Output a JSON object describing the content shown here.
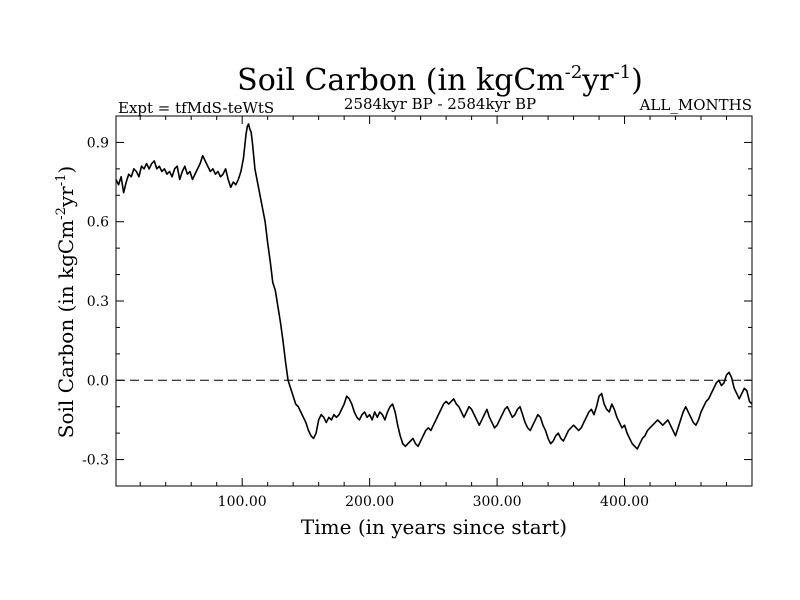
{
  "header": {
    "expt_label": "Expt = tfMdS-teWtS",
    "period_label": "2584kyr BP - 2584kyr BP",
    "months_label": "ALL_MONTHS"
  },
  "chart_data": {
    "type": "line",
    "title": {
      "main": "Soil Carbon (in kgCm",
      "sup1": "-2",
      "mid": "yr",
      "sup2": "-1",
      "end": ")"
    },
    "ylabel": {
      "main": "Soil Carbon (in kgCm",
      "sup1": "-2",
      "mid": "yr",
      "sup2": "-1",
      "end": ")"
    },
    "xlabel": "Time (in years since start)",
    "xlim": [
      1,
      500
    ],
    "ylim": [
      -0.4,
      1.0
    ],
    "x_ticks": [
      {
        "value": 100,
        "label": "100.00"
      },
      {
        "value": 200,
        "label": "200.00"
      },
      {
        "value": 300,
        "label": "300.00"
      },
      {
        "value": 400,
        "label": "400.00"
      }
    ],
    "y_ticks": [
      {
        "value": 0.9,
        "label": "0.9"
      },
      {
        "value": 0.6,
        "label": "0.6"
      },
      {
        "value": 0.3,
        "label": "0.3"
      },
      {
        "value": 0.0,
        "label": "0.0"
      },
      {
        "value": -0.3,
        "label": "-0.3"
      }
    ],
    "reference_line": {
      "y": 0.0,
      "style": "dashed"
    },
    "series": [
      {
        "name": "Soil Carbon",
        "color": "#000000",
        "points": [
          [
            1,
            0.76
          ],
          [
            3,
            0.74
          ],
          [
            5,
            0.77
          ],
          [
            7,
            0.71
          ],
          [
            9,
            0.75
          ],
          [
            11,
            0.78
          ],
          [
            13,
            0.77
          ],
          [
            15,
            0.8
          ],
          [
            17,
            0.79
          ],
          [
            19,
            0.77
          ],
          [
            21,
            0.81
          ],
          [
            23,
            0.8
          ],
          [
            25,
            0.82
          ],
          [
            27,
            0.8
          ],
          [
            29,
            0.82
          ],
          [
            31,
            0.83
          ],
          [
            33,
            0.8
          ],
          [
            35,
            0.81
          ],
          [
            37,
            0.79
          ],
          [
            39,
            0.8
          ],
          [
            41,
            0.78
          ],
          [
            43,
            0.79
          ],
          [
            45,
            0.77
          ],
          [
            47,
            0.8
          ],
          [
            49,
            0.81
          ],
          [
            51,
            0.76
          ],
          [
            53,
            0.79
          ],
          [
            55,
            0.81
          ],
          [
            57,
            0.78
          ],
          [
            59,
            0.79
          ],
          [
            61,
            0.76
          ],
          [
            63,
            0.78
          ],
          [
            65,
            0.8
          ],
          [
            67,
            0.82
          ],
          [
            69,
            0.85
          ],
          [
            71,
            0.83
          ],
          [
            73,
            0.81
          ],
          [
            75,
            0.79
          ],
          [
            77,
            0.8
          ],
          [
            79,
            0.78
          ],
          [
            81,
            0.79
          ],
          [
            83,
            0.77
          ],
          [
            85,
            0.78
          ],
          [
            87,
            0.8
          ],
          [
            89,
            0.76
          ],
          [
            91,
            0.73
          ],
          [
            93,
            0.75
          ],
          [
            95,
            0.74
          ],
          [
            97,
            0.76
          ],
          [
            99,
            0.79
          ],
          [
            101,
            0.84
          ],
          [
            103,
            0.93
          ],
          [
            104,
            0.96
          ],
          [
            105,
            0.97
          ],
          [
            106,
            0.95
          ],
          [
            107,
            0.94
          ],
          [
            108,
            0.9
          ],
          [
            110,
            0.8
          ],
          [
            112,
            0.75
          ],
          [
            114,
            0.7
          ],
          [
            116,
            0.65
          ],
          [
            118,
            0.6
          ],
          [
            120,
            0.52
          ],
          [
            122,
            0.45
          ],
          [
            124,
            0.37
          ],
          [
            126,
            0.34
          ],
          [
            128,
            0.28
          ],
          [
            130,
            0.22
          ],
          [
            132,
            0.15
          ],
          [
            134,
            0.07
          ],
          [
            136,
            0.0
          ],
          [
            138,
            -0.03
          ],
          [
            140,
            -0.06
          ],
          [
            142,
            -0.09
          ],
          [
            144,
            -0.1
          ],
          [
            146,
            -0.12
          ],
          [
            148,
            -0.14
          ],
          [
            150,
            -0.16
          ],
          [
            152,
            -0.19
          ],
          [
            154,
            -0.21
          ],
          [
            156,
            -0.22
          ],
          [
            158,
            -0.2
          ],
          [
            160,
            -0.15
          ],
          [
            162,
            -0.13
          ],
          [
            164,
            -0.14
          ],
          [
            166,
            -0.16
          ],
          [
            168,
            -0.14
          ],
          [
            170,
            -0.15
          ],
          [
            172,
            -0.13
          ],
          [
            174,
            -0.14
          ],
          [
            176,
            -0.13
          ],
          [
            178,
            -0.11
          ],
          [
            180,
            -0.09
          ],
          [
            182,
            -0.06
          ],
          [
            184,
            -0.07
          ],
          [
            186,
            -0.09
          ],
          [
            188,
            -0.12
          ],
          [
            190,
            -0.14
          ],
          [
            192,
            -0.15
          ],
          [
            194,
            -0.13
          ],
          [
            196,
            -0.12
          ],
          [
            198,
            -0.14
          ],
          [
            200,
            -0.13
          ],
          [
            202,
            -0.15
          ],
          [
            204,
            -0.12
          ],
          [
            206,
            -0.14
          ],
          [
            208,
            -0.12
          ],
          [
            210,
            -0.13
          ],
          [
            212,
            -0.15
          ],
          [
            214,
            -0.12
          ],
          [
            216,
            -0.1
          ],
          [
            218,
            -0.09
          ],
          [
            220,
            -0.12
          ],
          [
            222,
            -0.17
          ],
          [
            224,
            -0.21
          ],
          [
            226,
            -0.24
          ],
          [
            228,
            -0.25
          ],
          [
            230,
            -0.24
          ],
          [
            232,
            -0.23
          ],
          [
            234,
            -0.22
          ],
          [
            236,
            -0.24
          ],
          [
            238,
            -0.25
          ],
          [
            240,
            -0.23
          ],
          [
            242,
            -0.21
          ],
          [
            244,
            -0.19
          ],
          [
            246,
            -0.18
          ],
          [
            248,
            -0.19
          ],
          [
            250,
            -0.17
          ],
          [
            252,
            -0.15
          ],
          [
            254,
            -0.13
          ],
          [
            256,
            -0.11
          ],
          [
            258,
            -0.09
          ],
          [
            260,
            -0.08
          ],
          [
            262,
            -0.09
          ],
          [
            264,
            -0.08
          ],
          [
            266,
            -0.07
          ],
          [
            268,
            -0.09
          ],
          [
            270,
            -0.1
          ],
          [
            272,
            -0.12
          ],
          [
            274,
            -0.14
          ],
          [
            276,
            -0.12
          ],
          [
            278,
            -0.1
          ],
          [
            280,
            -0.11
          ],
          [
            282,
            -0.13
          ],
          [
            284,
            -0.15
          ],
          [
            286,
            -0.17
          ],
          [
            288,
            -0.15
          ],
          [
            290,
            -0.13
          ],
          [
            292,
            -0.11
          ],
          [
            294,
            -0.14
          ],
          [
            296,
            -0.16
          ],
          [
            298,
            -0.18
          ],
          [
            300,
            -0.17
          ],
          [
            302,
            -0.15
          ],
          [
            304,
            -0.13
          ],
          [
            306,
            -0.11
          ],
          [
            308,
            -0.1
          ],
          [
            310,
            -0.12
          ],
          [
            312,
            -0.14
          ],
          [
            314,
            -0.13
          ],
          [
            316,
            -0.11
          ],
          [
            318,
            -0.1
          ],
          [
            320,
            -0.13
          ],
          [
            322,
            -0.16
          ],
          [
            324,
            -0.18
          ],
          [
            326,
            -0.19
          ],
          [
            328,
            -0.17
          ],
          [
            330,
            -0.15
          ],
          [
            332,
            -0.13
          ],
          [
            334,
            -0.14
          ],
          [
            336,
            -0.17
          ],
          [
            338,
            -0.19
          ],
          [
            340,
            -0.22
          ],
          [
            342,
            -0.24
          ],
          [
            344,
            -0.23
          ],
          [
            346,
            -0.21
          ],
          [
            348,
            -0.2
          ],
          [
            350,
            -0.22
          ],
          [
            352,
            -0.23
          ],
          [
            354,
            -0.21
          ],
          [
            356,
            -0.19
          ],
          [
            358,
            -0.18
          ],
          [
            360,
            -0.17
          ],
          [
            362,
            -0.18
          ],
          [
            364,
            -0.19
          ],
          [
            366,
            -0.18
          ],
          [
            368,
            -0.16
          ],
          [
            370,
            -0.14
          ],
          [
            372,
            -0.12
          ],
          [
            374,
            -0.11
          ],
          [
            376,
            -0.13
          ],
          [
            378,
            -0.1
          ],
          [
            380,
            -0.06
          ],
          [
            382,
            -0.05
          ],
          [
            384,
            -0.09
          ],
          [
            386,
            -0.11
          ],
          [
            388,
            -0.12
          ],
          [
            390,
            -0.09
          ],
          [
            392,
            -0.11
          ],
          [
            394,
            -0.14
          ],
          [
            396,
            -0.16
          ],
          [
            398,
            -0.18
          ],
          [
            400,
            -0.17
          ],
          [
            402,
            -0.2
          ],
          [
            404,
            -0.22
          ],
          [
            406,
            -0.24
          ],
          [
            408,
            -0.25
          ],
          [
            410,
            -0.26
          ],
          [
            412,
            -0.24
          ],
          [
            414,
            -0.22
          ],
          [
            416,
            -0.21
          ],
          [
            418,
            -0.19
          ],
          [
            420,
            -0.18
          ],
          [
            422,
            -0.17
          ],
          [
            424,
            -0.16
          ],
          [
            426,
            -0.15
          ],
          [
            428,
            -0.16
          ],
          [
            430,
            -0.17
          ],
          [
            432,
            -0.16
          ],
          [
            434,
            -0.15
          ],
          [
            436,
            -0.17
          ],
          [
            438,
            -0.19
          ],
          [
            440,
            -0.21
          ],
          [
            442,
            -0.18
          ],
          [
            444,
            -0.15
          ],
          [
            446,
            -0.12
          ],
          [
            448,
            -0.1
          ],
          [
            450,
            -0.12
          ],
          [
            452,
            -0.14
          ],
          [
            454,
            -0.16
          ],
          [
            456,
            -0.17
          ],
          [
            458,
            -0.15
          ],
          [
            460,
            -0.12
          ],
          [
            462,
            -0.1
          ],
          [
            464,
            -0.08
          ],
          [
            466,
            -0.07
          ],
          [
            468,
            -0.05
          ],
          [
            470,
            -0.03
          ],
          [
            472,
            -0.01
          ],
          [
            474,
            0.0
          ],
          [
            476,
            -0.02
          ],
          [
            478,
            -0.01
          ],
          [
            480,
            0.02
          ],
          [
            482,
            0.03
          ],
          [
            484,
            0.01
          ],
          [
            486,
            -0.03
          ],
          [
            488,
            -0.05
          ],
          [
            490,
            -0.07
          ],
          [
            492,
            -0.05
          ],
          [
            494,
            -0.03
          ],
          [
            496,
            -0.04
          ],
          [
            498,
            -0.08
          ],
          [
            500,
            -0.09
          ]
        ]
      }
    ]
  }
}
